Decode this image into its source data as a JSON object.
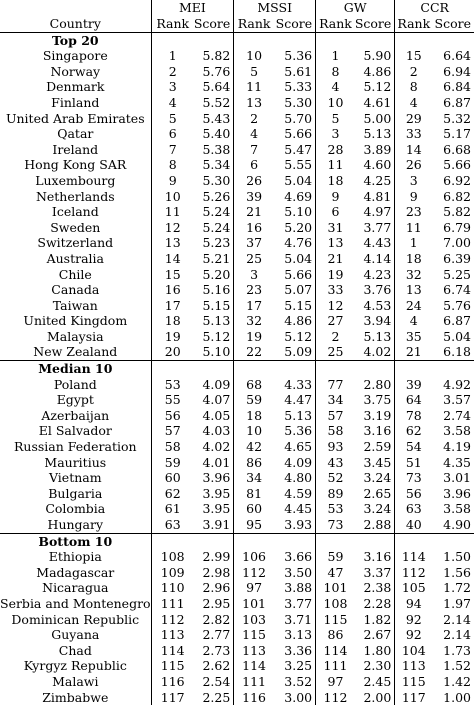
{
  "header": {
    "country_label": "Country",
    "groups": [
      "MEI",
      "MSSI",
      "GW",
      "CCR"
    ],
    "rank_label": "Rank",
    "score_label": "Score"
  },
  "sections": [
    {
      "title": "Top 20",
      "rows": [
        [
          "Singapore",
          "1",
          "5.82",
          "10",
          "5.36",
          "1",
          "5.90",
          "15",
          "6.64"
        ],
        [
          "Norway",
          "2",
          "5.76",
          "5",
          "5.61",
          "8",
          "4.86",
          "2",
          "6.94"
        ],
        [
          "Denmark",
          "3",
          "5.64",
          "11",
          "5.33",
          "4",
          "5.12",
          "8",
          "6.84"
        ],
        [
          "Finland",
          "4",
          "5.52",
          "13",
          "5.30",
          "10",
          "4.61",
          "4",
          "6.87"
        ],
        [
          "United Arab Emirates",
          "5",
          "5.43",
          "2",
          "5.70",
          "5",
          "5.00",
          "29",
          "5.32"
        ],
        [
          "Qatar",
          "6",
          "5.40",
          "4",
          "5.66",
          "3",
          "5.13",
          "33",
          "5.17"
        ],
        [
          "Ireland",
          "7",
          "5.38",
          "7",
          "5.47",
          "28",
          "3.89",
          "14",
          "6.68"
        ],
        [
          "Hong Kong SAR",
          "8",
          "5.34",
          "6",
          "5.55",
          "11",
          "4.60",
          "26",
          "5.66"
        ],
        [
          "Luxembourg",
          "9",
          "5.30",
          "26",
          "5.04",
          "18",
          "4.25",
          "3",
          "6.92"
        ],
        [
          "Netherlands",
          "10",
          "5.26",
          "39",
          "4.69",
          "9",
          "4.81",
          "9",
          "6.82"
        ],
        [
          "Iceland",
          "11",
          "5.24",
          "21",
          "5.10",
          "6",
          "4.97",
          "23",
          "5.82"
        ],
        [
          "Sweden",
          "12",
          "5.24",
          "16",
          "5.20",
          "31",
          "3.77",
          "11",
          "6.79"
        ],
        [
          "Switzerland",
          "13",
          "5.23",
          "37",
          "4.76",
          "13",
          "4.43",
          "1",
          "7.00"
        ],
        [
          "Australia",
          "14",
          "5.21",
          "25",
          "5.04",
          "21",
          "4.14",
          "18",
          "6.39"
        ],
        [
          "Chile",
          "15",
          "5.20",
          "3",
          "5.66",
          "19",
          "4.23",
          "32",
          "5.25"
        ],
        [
          "Canada",
          "16",
          "5.16",
          "23",
          "5.07",
          "33",
          "3.76",
          "13",
          "6.74"
        ],
        [
          "Taiwan",
          "17",
          "5.15",
          "17",
          "5.15",
          "12",
          "4.53",
          "24",
          "5.76"
        ],
        [
          "United Kingdom",
          "18",
          "5.13",
          "32",
          "4.86",
          "27",
          "3.94",
          "4",
          "6.87"
        ],
        [
          "Malaysia",
          "19",
          "5.12",
          "19",
          "5.12",
          "2",
          "5.13",
          "35",
          "5.04"
        ],
        [
          "New Zealand",
          "20",
          "5.10",
          "22",
          "5.09",
          "25",
          "4.02",
          "21",
          "6.18"
        ]
      ]
    },
    {
      "title": "Median 10",
      "rows": [
        [
          "Poland",
          "53",
          "4.09",
          "68",
          "4.33",
          "77",
          "2.80",
          "39",
          "4.92"
        ],
        [
          "Egypt",
          "55",
          "4.07",
          "59",
          "4.47",
          "34",
          "3.75",
          "64",
          "3.57"
        ],
        [
          "Azerbaijan",
          "56",
          "4.05",
          "18",
          "5.13",
          "57",
          "3.19",
          "78",
          "2.74"
        ],
        [
          "El Salvador",
          "57",
          "4.03",
          "10",
          "5.36",
          "58",
          "3.16",
          "62",
          "3.58"
        ],
        [
          "Russian Federation",
          "58",
          "4.02",
          "42",
          "4.65",
          "93",
          "2.59",
          "54",
          "4.19"
        ],
        [
          "Mauritius",
          "59",
          "4.01",
          "86",
          "4.09",
          "43",
          "3.45",
          "51",
          "4.35"
        ],
        [
          "Vietnam",
          "60",
          "3.96",
          "34",
          "4.80",
          "52",
          "3.24",
          "73",
          "3.01"
        ],
        [
          "Bulgaria",
          "62",
          "3.95",
          "81",
          "4.59",
          "89",
          "2.65",
          "56",
          "3.96"
        ],
        [
          "Colombia",
          "61",
          "3.95",
          "60",
          "4.45",
          "53",
          "3.24",
          "63",
          "3.58"
        ],
        [
          "Hungary",
          "63",
          "3.91",
          "95",
          "3.93",
          "73",
          "2.88",
          "40",
          "4.90"
        ]
      ]
    },
    {
      "title": "Bottom 10",
      "rows": [
        [
          "Ethiopia",
          "108",
          "2.99",
          "106",
          "3.66",
          "59",
          "3.16",
          "114",
          "1.50"
        ],
        [
          "Madagascar",
          "109",
          "2.98",
          "112",
          "3.50",
          "47",
          "3.37",
          "112",
          "1.56"
        ],
        [
          "Nicaragua",
          "110",
          "2.96",
          "97",
          "3.88",
          "101",
          "2.38",
          "105",
          "1.72"
        ],
        [
          "Serbia and Montenegro",
          "111",
          "2.95",
          "101",
          "3.77",
          "108",
          "2.28",
          "94",
          "1.97"
        ],
        [
          "Dominican Republic",
          "112",
          "2.82",
          "103",
          "3.71",
          "115",
          "1.82",
          "92",
          "2.14"
        ],
        [
          "Guyana",
          "113",
          "2.77",
          "115",
          "3.13",
          "86",
          "2.67",
          "92",
          "2.14"
        ],
        [
          "Chad",
          "114",
          "2.73",
          "113",
          "3.36",
          "114",
          "1.80",
          "104",
          "1.73"
        ],
        [
          "Kyrgyz Republic",
          "115",
          "2.62",
          "114",
          "3.25",
          "111",
          "2.30",
          "113",
          "1.52"
        ],
        [
          "Malawi",
          "116",
          "2.54",
          "111",
          "3.52",
          "97",
          "2.45",
          "115",
          "1.42"
        ],
        [
          "Zimbabwe",
          "117",
          "2.25",
          "116",
          "3.00",
          "112",
          "2.00",
          "117",
          "1.00"
        ]
      ]
    }
  ]
}
